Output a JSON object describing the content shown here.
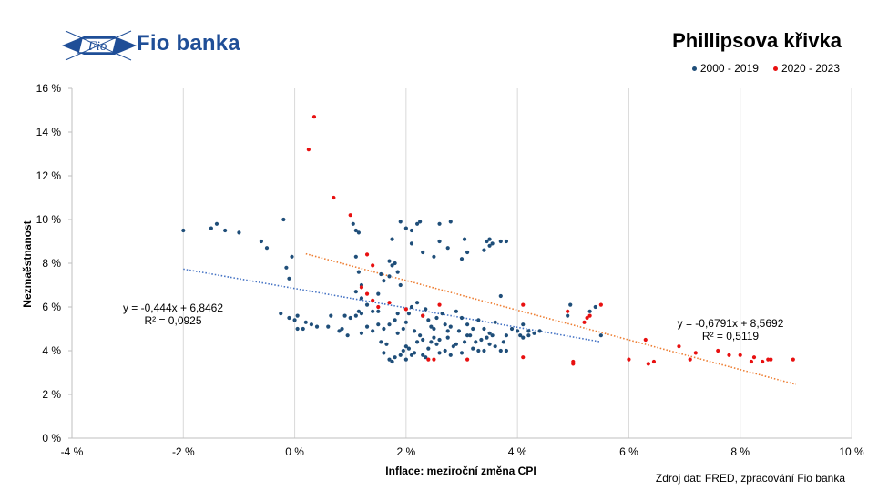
{
  "header": {
    "brand_name": "Fio banka",
    "logo_text": "Fio"
  },
  "source_note": "Zdroj  dat: FRED,  zpracování  Fio banka",
  "chart_data": {
    "type": "scatter",
    "title": "Phillipsova křivka",
    "xlabel": "Inflace: meziroční změna CPI",
    "ylabel": "Nezmaěstnanost",
    "xlim": [
      -4,
      10
    ],
    "ylim": [
      0,
      16
    ],
    "x_ticks": [
      "-4 %",
      "-2 %",
      "0 %",
      "2 %",
      "4 %",
      "6 %",
      "8 %",
      "10 %"
    ],
    "y_ticks": [
      "0 %",
      "2 %",
      "4 %",
      "6 %",
      "8 %",
      "10 %",
      "12 %",
      "14 %",
      "16 %"
    ],
    "grid": "vertical",
    "legend_position": "top-right",
    "colors": {
      "series_2000_2019": "#1f4e79",
      "series_2020_2023": "#e81010",
      "trend_2000_2019": "#4472c4",
      "trend_2020_2023": "#ed7d31"
    },
    "series": [
      {
        "name": "2000 - 2019",
        "color": "#1f4e79",
        "trendline": {
          "slope": -0.444,
          "intercept": 6.8462,
          "x_range": [
            -2.0,
            5.5
          ],
          "equation": "y = -0,444x + 6,8462",
          "r2": "R² = 0,0925"
        },
        "points": [
          [
            -2.0,
            9.5
          ],
          [
            -1.5,
            9.6
          ],
          [
            -1.4,
            9.8
          ],
          [
            -1.25,
            9.5
          ],
          [
            -1.0,
            9.4
          ],
          [
            -0.6,
            9.0
          ],
          [
            -0.5,
            8.7
          ],
          [
            -0.2,
            10.0
          ],
          [
            -0.15,
            7.8
          ],
          [
            -0.05,
            8.3
          ],
          [
            -0.1,
            7.3
          ],
          [
            -0.25,
            5.7
          ],
          [
            -0.1,
            5.5
          ],
          [
            0.0,
            5.4
          ],
          [
            0.05,
            5.6
          ],
          [
            0.05,
            5.0
          ],
          [
            0.15,
            5.0
          ],
          [
            0.2,
            5.3
          ],
          [
            0.3,
            5.2
          ],
          [
            0.4,
            5.1
          ],
          [
            0.6,
            5.1
          ],
          [
            0.65,
            5.6
          ],
          [
            0.8,
            4.9
          ],
          [
            0.85,
            5.0
          ],
          [
            0.9,
            5.6
          ],
          [
            1.0,
            5.5
          ],
          [
            1.1,
            5.6
          ],
          [
            1.15,
            5.8
          ],
          [
            1.2,
            5.7
          ],
          [
            1.3,
            6.1
          ],
          [
            1.4,
            5.8
          ],
          [
            1.5,
            5.8
          ],
          [
            1.1,
            9.5
          ],
          [
            1.05,
            9.8
          ],
          [
            1.15,
            9.4
          ],
          [
            1.1,
            8.3
          ],
          [
            1.15,
            7.6
          ],
          [
            1.2,
            7.0
          ],
          [
            1.1,
            6.7
          ],
          [
            1.2,
            6.4
          ],
          [
            1.5,
            6.6
          ],
          [
            1.55,
            7.5
          ],
          [
            1.6,
            7.2
          ],
          [
            1.7,
            8.1
          ],
          [
            1.75,
            7.9
          ],
          [
            1.8,
            8.0
          ],
          [
            1.85,
            7.6
          ],
          [
            1.7,
            7.4
          ],
          [
            1.9,
            7.0
          ],
          [
            1.75,
            9.1
          ],
          [
            1.9,
            9.9
          ],
          [
            2.0,
            9.6
          ],
          [
            2.1,
            9.5
          ],
          [
            2.2,
            9.8
          ],
          [
            2.25,
            9.9
          ],
          [
            2.1,
            8.9
          ],
          [
            2.3,
            8.5
          ],
          [
            2.5,
            8.3
          ],
          [
            2.6,
            9.8
          ],
          [
            2.8,
            9.9
          ],
          [
            2.6,
            9.0
          ],
          [
            2.75,
            8.7
          ],
          [
            3.0,
            8.2
          ],
          [
            3.1,
            8.5
          ],
          [
            3.05,
            9.1
          ],
          [
            3.4,
            8.6
          ],
          [
            3.45,
            9.0
          ],
          [
            3.5,
            9.1
          ],
          [
            3.55,
            8.9
          ],
          [
            3.7,
            9.0
          ],
          [
            3.8,
            9.0
          ],
          [
            3.5,
            8.8
          ],
          [
            1.55,
            4.4
          ],
          [
            1.6,
            3.9
          ],
          [
            1.7,
            3.6
          ],
          [
            1.75,
            3.5
          ],
          [
            1.8,
            3.7
          ],
          [
            1.9,
            3.8
          ],
          [
            1.95,
            4.0
          ],
          [
            2.0,
            4.2
          ],
          [
            2.05,
            4.1
          ],
          [
            2.1,
            3.8
          ],
          [
            2.15,
            3.9
          ],
          [
            2.2,
            4.4
          ],
          [
            2.25,
            4.7
          ],
          [
            2.3,
            3.8
          ],
          [
            2.35,
            3.7
          ],
          [
            2.4,
            4.1
          ],
          [
            2.45,
            4.4
          ],
          [
            2.5,
            4.6
          ],
          [
            2.55,
            4.3
          ],
          [
            2.6,
            4.5
          ],
          [
            2.7,
            4.0
          ],
          [
            2.75,
            4.6
          ],
          [
            2.8,
            3.8
          ],
          [
            2.85,
            4.2
          ],
          [
            2.9,
            4.3
          ],
          [
            3.0,
            3.9
          ],
          [
            3.05,
            4.4
          ],
          [
            3.1,
            4.7
          ],
          [
            3.2,
            4.1
          ],
          [
            3.25,
            4.4
          ],
          [
            3.3,
            4.0
          ],
          [
            3.35,
            4.5
          ],
          [
            3.4,
            4.0
          ],
          [
            3.5,
            4.3
          ],
          [
            3.6,
            4.2
          ],
          [
            3.7,
            4.0
          ],
          [
            3.8,
            4.0
          ],
          [
            3.75,
            4.4
          ],
          [
            1.6,
            5.0
          ],
          [
            1.7,
            5.2
          ],
          [
            1.8,
            5.4
          ],
          [
            1.85,
            5.7
          ],
          [
            1.95,
            5.0
          ],
          [
            2.0,
            5.3
          ],
          [
            2.05,
            5.7
          ],
          [
            2.1,
            6.0
          ],
          [
            2.2,
            6.2
          ],
          [
            2.3,
            5.6
          ],
          [
            2.35,
            5.9
          ],
          [
            2.4,
            5.4
          ],
          [
            2.5,
            5.0
          ],
          [
            2.55,
            5.5
          ],
          [
            2.65,
            5.7
          ],
          [
            2.7,
            5.2
          ],
          [
            2.8,
            5.1
          ],
          [
            2.9,
            5.8
          ],
          [
            3.0,
            5.5
          ],
          [
            3.1,
            5.2
          ],
          [
            3.2,
            5.0
          ],
          [
            3.3,
            5.4
          ],
          [
            3.4,
            5.0
          ],
          [
            3.5,
            4.8
          ],
          [
            3.6,
            5.3
          ],
          [
            3.7,
            6.5
          ],
          [
            3.8,
            4.7
          ],
          [
            3.9,
            5.0
          ],
          [
            4.0,
            4.9
          ],
          [
            4.05,
            4.7
          ],
          [
            4.1,
            5.2
          ],
          [
            4.2,
            4.9
          ],
          [
            4.3,
            4.8
          ],
          [
            4.4,
            4.9
          ],
          [
            4.1,
            4.6
          ],
          [
            4.2,
            4.7
          ],
          [
            4.9,
            5.6
          ],
          [
            5.3,
            5.8
          ],
          [
            5.5,
            4.7
          ],
          [
            4.95,
            6.1
          ],
          [
            5.4,
            6.0
          ],
          [
            1.4,
            4.9
          ],
          [
            1.3,
            5.1
          ],
          [
            1.2,
            4.8
          ],
          [
            1.5,
            5.2
          ],
          [
            0.95,
            4.7
          ],
          [
            1.85,
            4.8
          ],
          [
            2.15,
            4.9
          ],
          [
            2.45,
            5.1
          ],
          [
            2.75,
            4.9
          ],
          [
            3.15,
            4.7
          ],
          [
            3.45,
            4.6
          ],
          [
            2.95,
            4.9
          ],
          [
            1.65,
            4.3
          ],
          [
            2.3,
            4.5
          ],
          [
            2.6,
            3.9
          ],
          [
            3.55,
            4.7
          ],
          [
            2.0,
            3.6
          ]
        ]
      },
      {
        "name": "2020 - 2023",
        "color": "#e81010",
        "trendline": {
          "slope": -0.6791,
          "intercept": 8.5692,
          "x_range": [
            0.2,
            9.0
          ],
          "equation": "y = -0,6791x + 8,5692",
          "r2": "R² = 0,5119"
        },
        "points": [
          [
            0.35,
            14.7
          ],
          [
            0.25,
            13.2
          ],
          [
            0.7,
            11.0
          ],
          [
            1.0,
            10.2
          ],
          [
            1.3,
            8.4
          ],
          [
            1.4,
            7.9
          ],
          [
            1.2,
            6.9
          ],
          [
            1.3,
            6.6
          ],
          [
            1.4,
            6.3
          ],
          [
            1.5,
            6.0
          ],
          [
            1.7,
            6.2
          ],
          [
            2.0,
            5.9
          ],
          [
            2.3,
            5.6
          ],
          [
            2.6,
            6.1
          ],
          [
            3.1,
            3.6
          ],
          [
            2.4,
            3.6
          ],
          [
            2.5,
            3.6
          ],
          [
            4.1,
            3.7
          ],
          [
            4.1,
            6.1
          ],
          [
            4.9,
            5.8
          ],
          [
            5.0,
            3.4
          ],
          [
            5.0,
            3.5
          ],
          [
            5.2,
            5.3
          ],
          [
            5.25,
            5.5
          ],
          [
            5.3,
            5.6
          ],
          [
            5.5,
            6.1
          ],
          [
            6.0,
            3.6
          ],
          [
            6.3,
            4.5
          ],
          [
            6.35,
            3.4
          ],
          [
            6.45,
            3.5
          ],
          [
            6.9,
            4.2
          ],
          [
            7.1,
            3.6
          ],
          [
            7.2,
            3.9
          ],
          [
            7.6,
            4.0
          ],
          [
            7.8,
            3.8
          ],
          [
            8.0,
            3.8
          ],
          [
            8.2,
            3.5
          ],
          [
            8.25,
            3.7
          ],
          [
            8.4,
            3.5
          ],
          [
            8.5,
            3.6
          ],
          [
            8.55,
            3.6
          ],
          [
            8.95,
            3.6
          ]
        ]
      }
    ]
  }
}
